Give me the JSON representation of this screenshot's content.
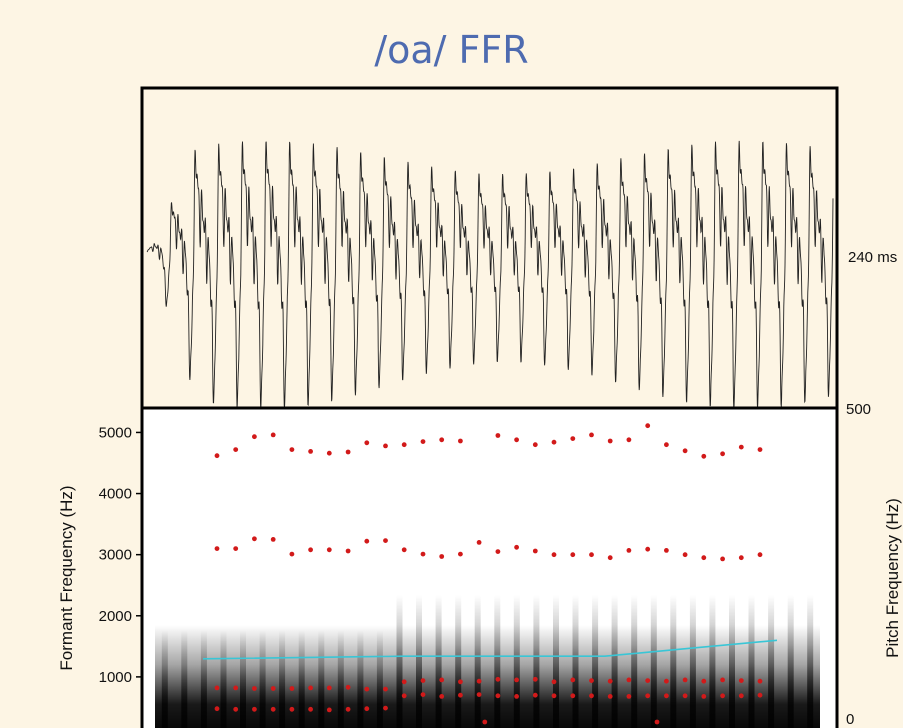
{
  "title": "/oa/ FFR",
  "chart_data": [
    {
      "type": "line",
      "description_label": "waveform",
      "duration_label": "240 ms",
      "x_range_ms": [
        0,
        240
      ]
    },
    {
      "type": "scatter",
      "ylabel_left": "Formant Frequency (Hz)",
      "ylabel_right": "Pitch Frequency (Hz)",
      "yticks_left": [
        "1000",
        "2000",
        "3000",
        "4000",
        "5000"
      ],
      "yticks_right": [
        "0",
        "500"
      ],
      "ylim_left": [
        0,
        5400
      ],
      "ylim_right": [
        0,
        500
      ],
      "x": [
        1,
        2,
        3,
        4,
        5,
        6,
        7,
        8,
        9,
        10,
        11,
        12,
        13,
        14,
        15,
        16,
        17,
        18,
        19,
        20,
        21,
        22,
        23,
        24,
        25,
        26,
        27,
        28,
        29,
        30
      ],
      "series": [
        {
          "name": "",
          "values": [
            4620,
            4720,
            4930,
            4960,
            4720,
            4690,
            4660,
            4680,
            4830,
            4780,
            4800,
            4850,
            4880,
            4860,
            null,
            4950,
            4880,
            4800,
            4840,
            4900,
            4960,
            4860,
            4880,
            5110,
            4800,
            4700,
            4610,
            4650,
            4760,
            4720
          ]
        },
        {
          "name": "",
          "values": [
            3100,
            3100,
            3260,
            3250,
            3010,
            3080,
            3080,
            3060,
            3220,
            3230,
            3080,
            3010,
            2970,
            3010,
            3200,
            3050,
            3120,
            3060,
            3000,
            3000,
            3000,
            2950,
            3070,
            3090,
            3070,
            3000,
            2950,
            2930,
            2950,
            3000
          ]
        },
        {
          "name": "",
          "values": [
            820,
            820,
            810,
            810,
            810,
            820,
            820,
            830,
            800,
            800,
            920,
            940,
            950,
            920,
            930,
            960,
            950,
            960,
            920,
            950,
            940,
            930,
            950,
            940,
            930,
            950,
            930,
            950,
            940,
            930
          ]
        },
        {
          "name": "",
          "values": [
            480,
            470,
            470,
            470,
            470,
            470,
            460,
            470,
            480,
            490,
            690,
            710,
            680,
            700,
            710,
            690,
            680,
            700,
            690,
            690,
            690,
            680,
            680,
            690,
            690,
            690,
            680,
            690,
            690,
            700
          ]
        }
      ],
      "pitch_contour": {
        "x": [
          0,
          0.35,
          0.5,
          0.7,
          0.85,
          1
        ],
        "y": [
          120,
          124,
          124,
          124,
          136,
          148
        ]
      },
      "extra_points": [
        {
          "x": 15.3,
          "y": -120
        },
        {
          "x": 24.5,
          "y": -40
        }
      ]
    }
  ]
}
